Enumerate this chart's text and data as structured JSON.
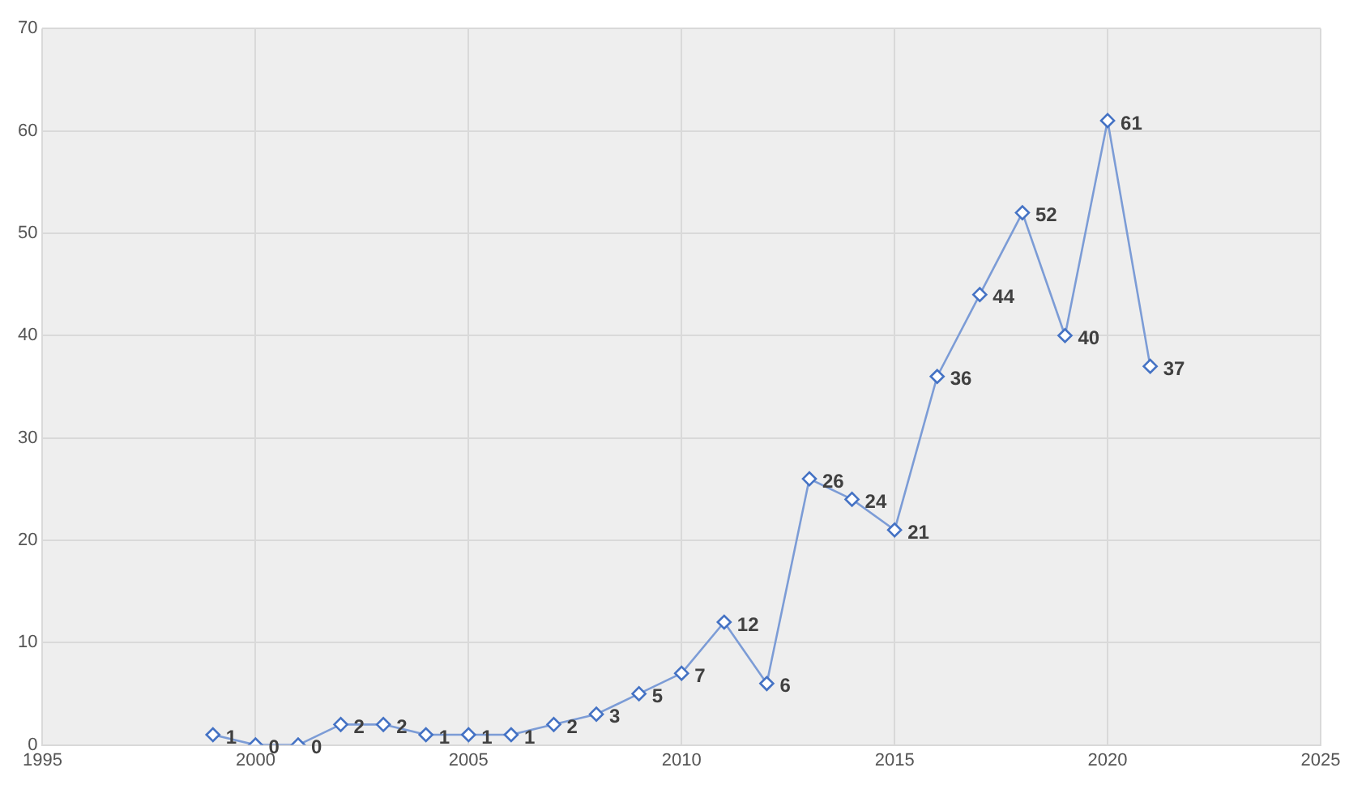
{
  "chart_data": {
    "type": "line",
    "x": [
      1999,
      2000,
      2001,
      2002,
      2003,
      2004,
      2005,
      2006,
      2007,
      2008,
      2009,
      2010,
      2011,
      2012,
      2013,
      2014,
      2015,
      2016,
      2017,
      2018,
      2019,
      2020,
      2021
    ],
    "series": [
      {
        "color": "#4472c4",
        "values": [
          1,
          0,
          0,
          2,
          2,
          1,
          1,
          1,
          2,
          3,
          5,
          7,
          12,
          6,
          26,
          24,
          21,
          36,
          44,
          52,
          40,
          61,
          37
        ]
      }
    ],
    "xlim": [
      1995,
      2025
    ],
    "xticks": [
      1995,
      2000,
      2005,
      2010,
      2015,
      2020,
      2025
    ],
    "ylim": [
      0,
      70
    ],
    "yticks": [
      0,
      10,
      20,
      30,
      40,
      50,
      60,
      70
    ],
    "grid": true,
    "marker": "diamond",
    "line_style": "solid",
    "data_labels": true,
    "legend": false
  }
}
